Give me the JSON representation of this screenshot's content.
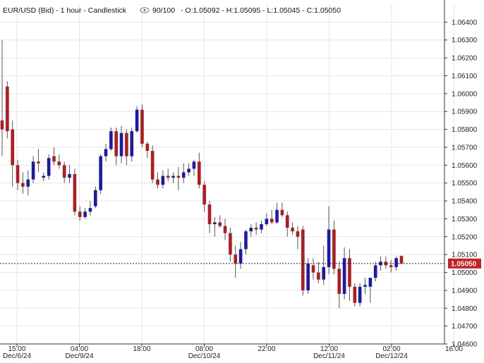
{
  "header": {
    "symbol": "EUR/USD (Bid) - 1 hour - Candlestick",
    "view_count": "90/100",
    "ohlc": "- O:1.05092 - H:1.05095 - L:1.05045 - C:1.05050",
    "eye_icon": "eye-icon"
  },
  "colors": {
    "up": "#1a1aa6",
    "down": "#b01c22",
    "grid": "#e6e6e6",
    "axis": "#333333",
    "price_marker": "#cc1f1f"
  },
  "chart_data": {
    "type": "candlestick",
    "title": "EUR/USD (Bid) - 1 hour - Candlestick",
    "ylim": [
      1.046,
      1.065
    ],
    "y_ticks": [
      "1.06400",
      "1.06300",
      "1.06200",
      "1.06100",
      "1.06000",
      "1.05900",
      "1.05800",
      "1.05700",
      "1.05600",
      "1.05500",
      "1.05400",
      "1.05300",
      "1.05200",
      "1.05100",
      "1.05000",
      "1.04900",
      "1.04800",
      "1.04700",
      "1.04600"
    ],
    "x_ticks": [
      {
        "time": "15:00",
        "date": "Dec/6/24"
      },
      {
        "time": "04:00",
        "date": "Dec/9/24"
      },
      {
        "time": "18:00",
        "date": ""
      },
      {
        "time": "08:00",
        "date": "Dec/10/24"
      },
      {
        "time": "22:00",
        "date": ""
      },
      {
        "time": "12:00",
        "date": "Dec/11/24"
      },
      {
        "time": "02:00",
        "date": "Dec/12/24"
      },
      {
        "time": "16:00",
        "date": ""
      }
    ],
    "last_price": "1.05050",
    "candles": [
      {
        "o": 1.0585,
        "h": 1.063,
        "l": 1.0565,
        "c": 1.058
      },
      {
        "o": 1.0604,
        "h": 1.0607,
        "l": 1.0575,
        "c": 1.0579
      },
      {
        "o": 1.058,
        "h": 1.0585,
        "l": 1.0548,
        "c": 1.056
      },
      {
        "o": 1.056,
        "h": 1.0563,
        "l": 1.0546,
        "c": 1.055
      },
      {
        "o": 1.055,
        "h": 1.0556,
        "l": 1.0544,
        "c": 1.0548
      },
      {
        "o": 1.0548,
        "h": 1.0557,
        "l": 1.0543,
        "c": 1.0552
      },
      {
        "o": 1.0552,
        "h": 1.0565,
        "l": 1.055,
        "c": 1.0562
      },
      {
        "o": 1.0562,
        "h": 1.0569,
        "l": 1.0556,
        "c": 1.0561
      },
      {
        "o": 1.0553,
        "h": 1.0556,
        "l": 1.0551,
        "c": 1.0554
      },
      {
        "o": 1.0554,
        "h": 1.0566,
        "l": 1.0552,
        "c": 1.0564
      },
      {
        "o": 1.0565,
        "h": 1.057,
        "l": 1.056,
        "c": 1.0562
      },
      {
        "o": 1.0562,
        "h": 1.0566,
        "l": 1.0558,
        "c": 1.056
      },
      {
        "o": 1.056,
        "h": 1.0562,
        "l": 1.055,
        "c": 1.0553
      },
      {
        "o": 1.0553,
        "h": 1.056,
        "l": 1.055,
        "c": 1.0555
      },
      {
        "o": 1.0555,
        "h": 1.0558,
        "l": 1.0532,
        "c": 1.0534
      },
      {
        "o": 1.0534,
        "h": 1.0537,
        "l": 1.0529,
        "c": 1.0531
      },
      {
        "o": 1.0531,
        "h": 1.0536,
        "l": 1.053,
        "c": 1.0534
      },
      {
        "o": 1.0534,
        "h": 1.054,
        "l": 1.0532,
        "c": 1.0536
      },
      {
        "o": 1.0537,
        "h": 1.0548,
        "l": 1.0536,
        "c": 1.0546
      },
      {
        "o": 1.0546,
        "h": 1.0566,
        "l": 1.0544,
        "c": 1.0565
      },
      {
        "o": 1.0565,
        "h": 1.0572,
        "l": 1.0562,
        "c": 1.0569
      },
      {
        "o": 1.0569,
        "h": 1.0581,
        "l": 1.0568,
        "c": 1.0579
      },
      {
        "o": 1.0579,
        "h": 1.0581,
        "l": 1.056,
        "c": 1.0565
      },
      {
        "o": 1.0565,
        "h": 1.0582,
        "l": 1.0561,
        "c": 1.0578
      },
      {
        "o": 1.0578,
        "h": 1.058,
        "l": 1.056,
        "c": 1.0565
      },
      {
        "o": 1.0565,
        "h": 1.0581,
        "l": 1.0562,
        "c": 1.0579
      },
      {
        "o": 1.0579,
        "h": 1.0593,
        "l": 1.0578,
        "c": 1.0591
      },
      {
        "o": 1.0591,
        "h": 1.0594,
        "l": 1.057,
        "c": 1.0572
      },
      {
        "o": 1.0572,
        "h": 1.0573,
        "l": 1.0564,
        "c": 1.0568
      },
      {
        "o": 1.0568,
        "h": 1.0571,
        "l": 1.055,
        "c": 1.0552
      },
      {
        "o": 1.0552,
        "h": 1.0556,
        "l": 1.0547,
        "c": 1.0549
      },
      {
        "o": 1.0549,
        "h": 1.0557,
        "l": 1.0547,
        "c": 1.0554
      },
      {
        "o": 1.0554,
        "h": 1.0558,
        "l": 1.0551,
        "c": 1.0553
      },
      {
        "o": 1.0553,
        "h": 1.0556,
        "l": 1.055,
        "c": 1.0554
      },
      {
        "o": 1.0554,
        "h": 1.0559,
        "l": 1.0546,
        "c": 1.0553
      },
      {
        "o": 1.0553,
        "h": 1.0561,
        "l": 1.055,
        "c": 1.0556
      },
      {
        "o": 1.0556,
        "h": 1.0561,
        "l": 1.0554,
        "c": 1.0558
      },
      {
        "o": 1.0558,
        "h": 1.0563,
        "l": 1.0554,
        "c": 1.0562
      },
      {
        "o": 1.0562,
        "h": 1.0567,
        "l": 1.0547,
        "c": 1.0549
      },
      {
        "o": 1.0549,
        "h": 1.0551,
        "l": 1.0534,
        "c": 1.0538
      },
      {
        "o": 1.0538,
        "h": 1.054,
        "l": 1.0522,
        "c": 1.0527
      },
      {
        "o": 1.0527,
        "h": 1.0531,
        "l": 1.052,
        "c": 1.0528
      },
      {
        "o": 1.0528,
        "h": 1.0532,
        "l": 1.0525,
        "c": 1.0526
      },
      {
        "o": 1.0526,
        "h": 1.053,
        "l": 1.0518,
        "c": 1.0522
      },
      {
        "o": 1.0522,
        "h": 1.0525,
        "l": 1.0506,
        "c": 1.051
      },
      {
        "o": 1.051,
        "h": 1.0515,
        "l": 1.0497,
        "c": 1.0505
      },
      {
        "o": 1.0505,
        "h": 1.0517,
        "l": 1.0502,
        "c": 1.0513
      },
      {
        "o": 1.0513,
        "h": 1.0524,
        "l": 1.051,
        "c": 1.0523
      },
      {
        "o": 1.0523,
        "h": 1.0527,
        "l": 1.052,
        "c": 1.0525
      },
      {
        "o": 1.0525,
        "h": 1.0528,
        "l": 1.0521,
        "c": 1.0524
      },
      {
        "o": 1.0524,
        "h": 1.0529,
        "l": 1.0522,
        "c": 1.0527
      },
      {
        "o": 1.0527,
        "h": 1.0533,
        "l": 1.0526,
        "c": 1.053
      },
      {
        "o": 1.053,
        "h": 1.0535,
        "l": 1.0527,
        "c": 1.0528
      },
      {
        "o": 1.0528,
        "h": 1.0539,
        "l": 1.0527,
        "c": 1.0535
      },
      {
        "o": 1.0535,
        "h": 1.0539,
        "l": 1.0531,
        "c": 1.0532
      },
      {
        "o": 1.0532,
        "h": 1.0534,
        "l": 1.052,
        "c": 1.0525
      },
      {
        "o": 1.0525,
        "h": 1.0528,
        "l": 1.0521,
        "c": 1.0523
      },
      {
        "o": 1.0523,
        "h": 1.0526,
        "l": 1.0513,
        "c": 1.052
      },
      {
        "o": 1.0524,
        "h": 1.0526,
        "l": 1.0487,
        "c": 1.049
      },
      {
        "o": 1.049,
        "h": 1.0508,
        "l": 1.0488,
        "c": 1.0505
      },
      {
        "o": 1.0504,
        "h": 1.0508,
        "l": 1.0496,
        "c": 1.05
      },
      {
        "o": 1.05,
        "h": 1.0506,
        "l": 1.0494,
        "c": 1.0496
      },
      {
        "o": 1.0496,
        "h": 1.0515,
        "l": 1.0493,
        "c": 1.0503
      },
      {
        "o": 1.0503,
        "h": 1.0537,
        "l": 1.0499,
        "c": 1.0524
      },
      {
        "o": 1.0524,
        "h": 1.0529,
        "l": 1.0499,
        "c": 1.0502
      },
      {
        "o": 1.0502,
        "h": 1.0506,
        "l": 1.048,
        "c": 1.0488
      },
      {
        "o": 1.0488,
        "h": 1.0514,
        "l": 1.0485,
        "c": 1.0508
      },
      {
        "o": 1.0508,
        "h": 1.0513,
        "l": 1.0484,
        "c": 1.0492
      },
      {
        "o": 1.0492,
        "h": 1.0494,
        "l": 1.0481,
        "c": 1.0483
      },
      {
        "o": 1.0483,
        "h": 1.0494,
        "l": 1.0481,
        "c": 1.0492
      },
      {
        "o": 1.0492,
        "h": 1.0497,
        "l": 1.0488,
        "c": 1.0493
      },
      {
        "o": 1.0492,
        "h": 1.0497,
        "l": 1.0483,
        "c": 1.0497
      },
      {
        "o": 1.0497,
        "h": 1.0506,
        "l": 1.0495,
        "c": 1.0504
      },
      {
        "o": 1.0504,
        "h": 1.0509,
        "l": 1.0501,
        "c": 1.0506
      },
      {
        "o": 1.0506,
        "h": 1.0509,
        "l": 1.0502,
        "c": 1.0504
      },
      {
        "o": 1.0504,
        "h": 1.0507,
        "l": 1.05,
        "c": 1.0503
      },
      {
        "o": 1.0503,
        "h": 1.0509,
        "l": 1.0501,
        "c": 1.0508
      },
      {
        "o": 1.05092,
        "h": 1.05095,
        "l": 1.05045,
        "c": 1.0505
      }
    ]
  }
}
